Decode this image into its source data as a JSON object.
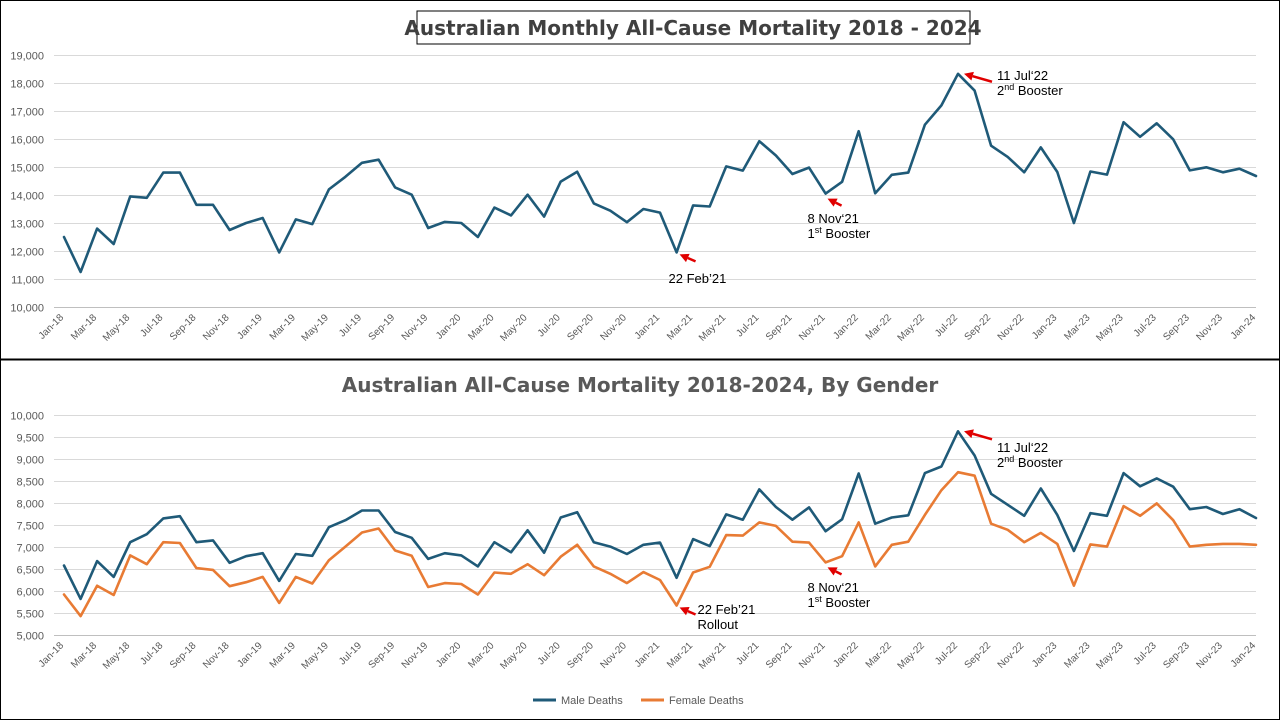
{
  "colors": {
    "male": "#1f5a78",
    "female": "#e87b34",
    "total": "#1f5a78",
    "arrow": "#e00000"
  },
  "chart_data": [
    {
      "type": "line",
      "title": "Australian Monthly All-Cause Mortality 2018 - 2024",
      "xlabel": "",
      "ylabel": "",
      "ylim": [
        10000,
        19000
      ],
      "yticks": [
        "10,000",
        "11,000",
        "12,000",
        "13,000",
        "14,000",
        "15,000",
        "16,000",
        "17,000",
        "18,000",
        "19,000"
      ],
      "grid": true,
      "tick_labels": [
        "Jan-18",
        "Mar-18",
        "May-18",
        "Jul-18",
        "Sep-18",
        "Nov-18",
        "Jan-19",
        "Mar-19",
        "May-19",
        "Jul-19",
        "Sep-19",
        "Nov-19",
        "Jan-20",
        "Mar-20",
        "May-20",
        "Jul-20",
        "Sep-20",
        "Nov-20",
        "Jan-21",
        "Mar-21",
        "May-21",
        "Jul-21",
        "Sep-21",
        "Nov-21",
        "Jan-22",
        "Mar-22",
        "May-22",
        "Jul-22",
        "Sep-22",
        "Nov-22",
        "Jan-23",
        "Mar-23",
        "May-23",
        "Jul-23",
        "Sep-23",
        "Nov-23",
        "Jan-24"
      ],
      "series": [
        {
          "values": [
            12500,
            11250,
            12800,
            12250,
            13950,
            13900,
            14800,
            14800,
            13650,
            13650,
            12750,
            13000,
            13180,
            11950,
            13130,
            12960,
            14200,
            14650,
            15150,
            15260,
            14270,
            14010,
            12820,
            13040,
            13000,
            12500,
            13550,
            13270,
            14010,
            13230,
            14480,
            14830,
            13700,
            13440,
            13030,
            13500,
            13370,
            11950,
            13630,
            13590,
            15020,
            14870,
            15920,
            15410,
            14750,
            14980,
            14050,
            14470,
            16280,
            14060,
            14720,
            14800,
            16510,
            17200,
            18330,
            17730,
            15760,
            15360,
            14810,
            15700,
            14820,
            13000,
            14840,
            14730,
            16600,
            16080,
            16560,
            15990,
            14880,
            14990,
            14810,
            14940,
            14680
          ]
        }
      ],
      "annotations": [
        {
          "line1": "22 Feb’21",
          "line2": "",
          "x_month": 37
        },
        {
          "line1": "8 Nov‘21",
          "line2_main": "1",
          "line2_sup": "st",
          "line2_rest": " Booster",
          "x_month": 46
        },
        {
          "line1": "11 Jul‘22",
          "line2_main": "2",
          "line2_sup": "nd",
          "line2_rest": " Booster",
          "x_month": 54
        }
      ]
    },
    {
      "type": "line",
      "title": "Australian All-Cause Mortality 2018-2024, By Gender",
      "xlabel": "",
      "ylabel": "",
      "ylim": [
        5000,
        10000
      ],
      "yticks": [
        "5,000",
        "5,500",
        "6,000",
        "6,500",
        "7,000",
        "7,500",
        "8,000",
        "8,500",
        "9,000",
        "9,500",
        "10,000"
      ],
      "grid": true,
      "legend": "bottom",
      "tick_labels": [
        "Jan-18",
        "Mar-18",
        "May-18",
        "Jul-18",
        "Sep-18",
        "Nov-18",
        "Jan-19",
        "Mar-19",
        "May-19",
        "Jul-19",
        "Sep-19",
        "Nov-19",
        "Jan-20",
        "Mar-20",
        "May-20",
        "Jul-20",
        "Sep-20",
        "Nov-20",
        "Jan-21",
        "Mar-21",
        "May-21",
        "Jul-21",
        "Sep-21",
        "Nov-21",
        "Jan-22",
        "Mar-22",
        "May-22",
        "Jul-22",
        "Sep-22",
        "Nov-22",
        "Jan-23",
        "Mar-23",
        "May-23",
        "Jul-23",
        "Sep-23",
        "Nov-23",
        "Jan-24"
      ],
      "series": [
        {
          "name": "Male Deaths",
          "values": [
            6580,
            5820,
            6680,
            6320,
            7110,
            7290,
            7650,
            7700,
            7110,
            7150,
            6640,
            6790,
            6860,
            6230,
            6840,
            6800,
            7450,
            7610,
            7830,
            7830,
            7340,
            7210,
            6730,
            6860,
            6810,
            6560,
            7110,
            6880,
            7380,
            6870,
            7670,
            7790,
            7110,
            7010,
            6840,
            7050,
            7100,
            6300,
            7180,
            7020,
            7740,
            7620,
            8310,
            7910,
            7620,
            7900,
            7360,
            7630,
            8670,
            7530,
            7670,
            7720,
            8680,
            8830,
            9630,
            9080,
            8210,
            7960,
            7710,
            8330,
            7730,
            6910,
            7770,
            7710,
            8680,
            8380,
            8560,
            8370,
            7860,
            7910,
            7750,
            7860,
            7660
          ]
        },
        {
          "name": "Female Deaths",
          "values": [
            5920,
            5430,
            6120,
            5910,
            6810,
            6610,
            7110,
            7090,
            6520,
            6480,
            6110,
            6200,
            6320,
            5730,
            6320,
            6170,
            6700,
            7010,
            7330,
            7420,
            6920,
            6800,
            6090,
            6180,
            6160,
            5920,
            6420,
            6390,
            6610,
            6360,
            6780,
            7050,
            6560,
            6390,
            6180,
            6430,
            6250,
            5670,
            6420,
            6550,
            7270,
            7260,
            7560,
            7480,
            7120,
            7100,
            6650,
            6790,
            7560,
            6560,
            7050,
            7120,
            7730,
            8290,
            8700,
            8620,
            7530,
            7390,
            7110,
            7320,
            7070,
            6120,
            7060,
            7010,
            7930,
            7710,
            7990,
            7610,
            7010,
            7050,
            7070,
            7070,
            7050
          ]
        }
      ],
      "annotations": [
        {
          "line1": "22 Feb’21",
          "line2": "Rollout",
          "x_month": 37
        },
        {
          "line1": "8 Nov‘21",
          "line2_main": "1",
          "line2_sup": "st",
          "line2_rest": " Booster",
          "x_month": 46
        },
        {
          "line1": "11 Jul‘22",
          "line2_main": "2",
          "line2_sup": "nd",
          "line2_rest": " Booster",
          "x_month": 54
        }
      ]
    }
  ]
}
